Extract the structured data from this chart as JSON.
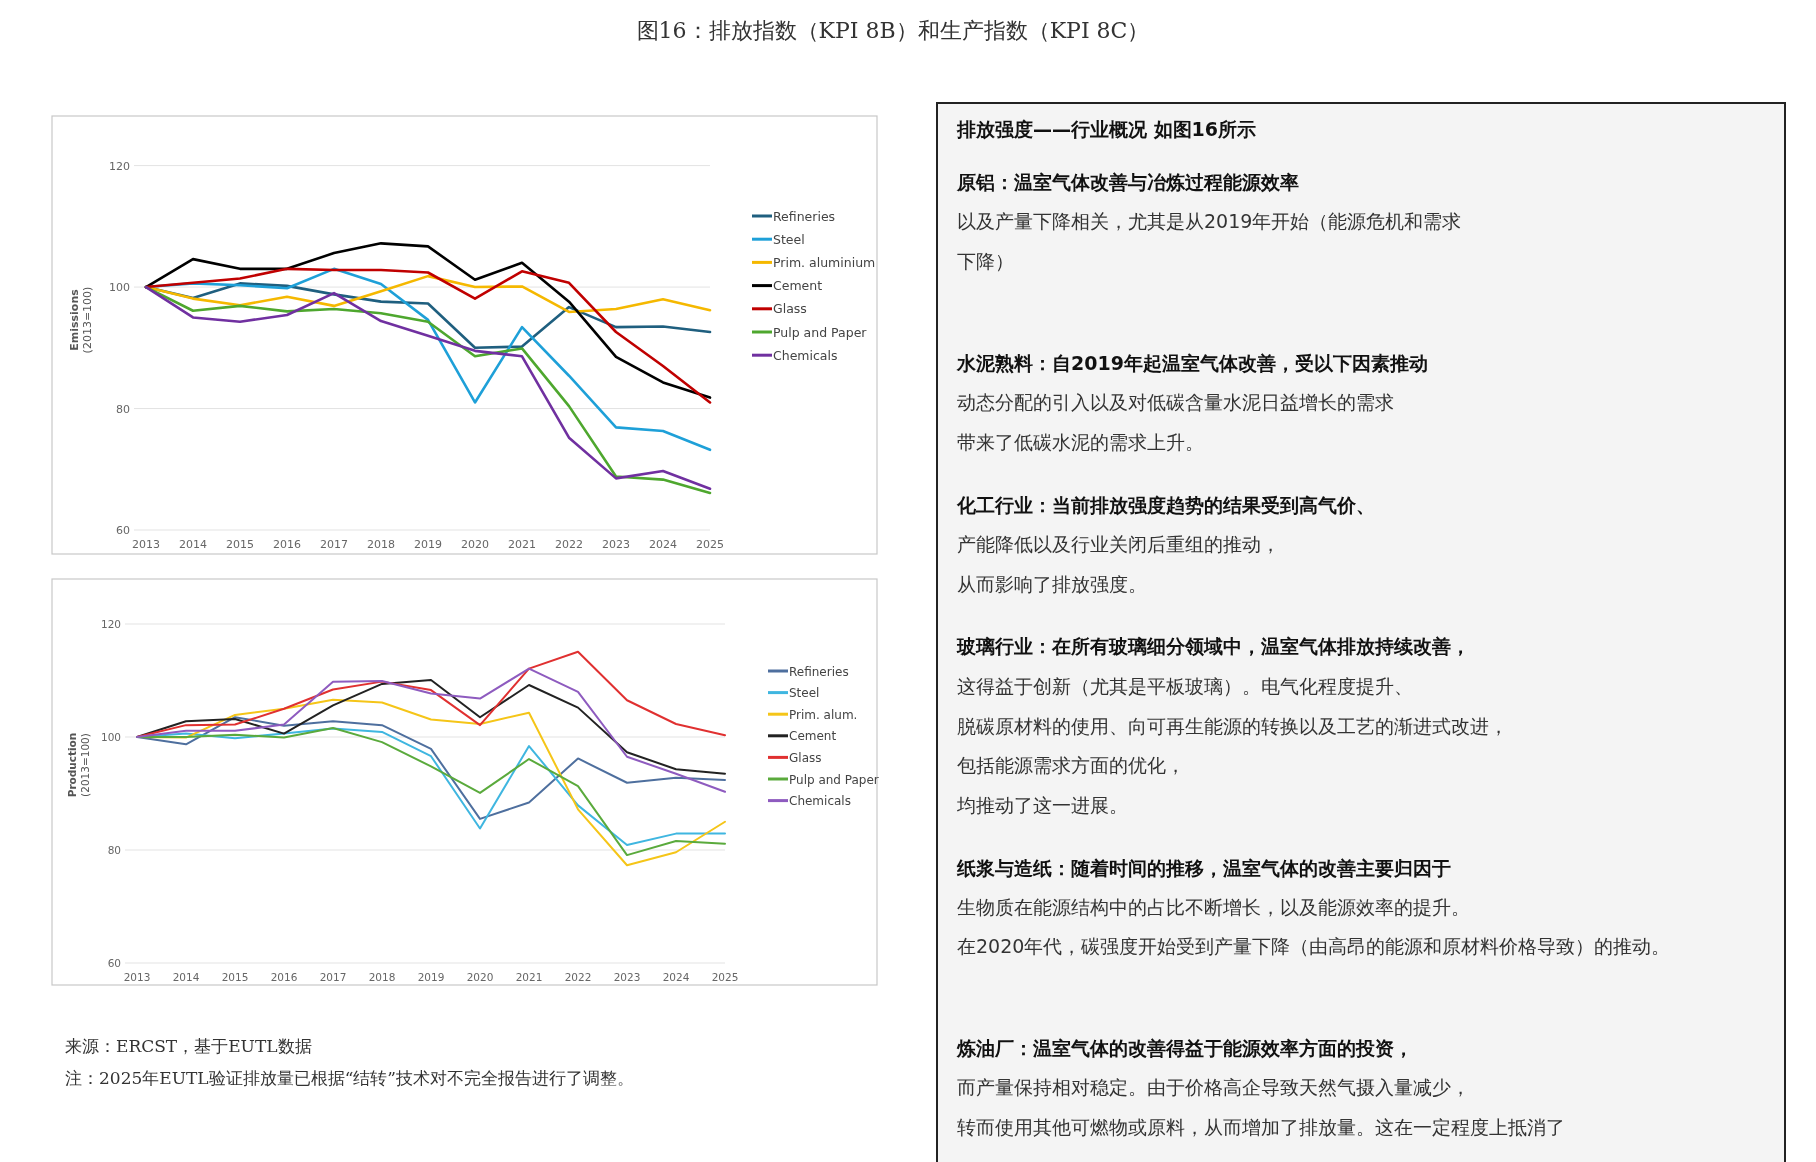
{
  "chart_data": [
    {
      "type": "line",
      "title": "图16：排放指数（KPI 8B）和生产指数（KPI 8C）",
      "ylabel": "Emissions\n(2013=100)",
      "categories": [
        "2013",
        "2014",
        "2015",
        "2016",
        "2017",
        "2018",
        "2019",
        "2020",
        "2021",
        "2022",
        "2023",
        "2024",
        "2025"
      ],
      "ylim": [
        60,
        120
      ],
      "yticks": [
        60,
        80,
        100,
        120
      ],
      "grid": "y",
      "legend": "right",
      "series": [
        {
          "name": "Refineries",
          "color": "#1f5f7f",
          "values": [
            100,
            98.2,
            100.6,
            100.2,
            98.8,
            97.6,
            97.3,
            90.0,
            90.2,
            96.7,
            93.4,
            93.5,
            92.6
          ]
        },
        {
          "name": "Steel",
          "color": "#1ea0d8",
          "values": [
            100,
            100.6,
            100.3,
            99.8,
            103.0,
            100.5,
            94.6,
            81.0,
            93.4,
            85.4,
            76.9,
            76.3,
            73.2
          ]
        },
        {
          "name": "Prim. aluminium",
          "color": "#f5b800",
          "values": [
            100,
            98.1,
            97.0,
            98.4,
            96.9,
            99.3,
            101.8,
            100.0,
            100.1,
            95.9,
            96.4,
            98.0,
            96.2
          ]
        },
        {
          "name": "Cement",
          "color": "#000000",
          "values": [
            100,
            104.6,
            103.0,
            103.0,
            105.6,
            107.2,
            106.7,
            101.2,
            104.0,
            97.6,
            88.5,
            84.3,
            81.8
          ]
        },
        {
          "name": "Glass",
          "color": "#c00000",
          "values": [
            100,
            100.7,
            101.4,
            103.0,
            102.8,
            102.8,
            102.4,
            98.1,
            102.6,
            100.7,
            92.6,
            87.0,
            81.0
          ]
        },
        {
          "name": "Pulp and Paper",
          "color": "#4ea72e",
          "values": [
            100,
            96.1,
            96.9,
            96.0,
            96.4,
            95.7,
            94.3,
            88.6,
            89.9,
            80.4,
            68.8,
            68.3,
            66.1
          ]
        },
        {
          "name": "Chemicals",
          "color": "#7030a0",
          "values": [
            100,
            95.0,
            94.3,
            95.4,
            99.0,
            94.4,
            92.0,
            89.5,
            88.6,
            75.2,
            68.5,
            69.7,
            66.8
          ]
        }
      ]
    },
    {
      "type": "line",
      "ylabel": "Production\n(2013=100)",
      "categories": [
        "2013",
        "2014",
        "2015",
        "2016",
        "2017",
        "2018",
        "2019",
        "2020",
        "2021",
        "2022",
        "2023",
        "2024",
        "2025"
      ],
      "ylim": [
        60,
        120
      ],
      "yticks": [
        60,
        80,
        100,
        120
      ],
      "grid": "y",
      "legend": "right",
      "annotations": [
        "来源：ERCST，基于EUTL数据",
        "注：2025年EUTL验证排放量已根据“结转”技术对不完全报告进行了调整。"
      ],
      "series": [
        {
          "name": "Refineries",
          "color": "#4e6f9e",
          "values": [
            100,
            98.7,
            103.5,
            102.0,
            102.8,
            102.1,
            97.9,
            85.5,
            88.4,
            96.2,
            91.9,
            92.8,
            92.4
          ]
        },
        {
          "name": "Steel",
          "color": "#3fb6e0",
          "values": [
            100,
            100.6,
            99.8,
            100.6,
            101.5,
            100.9,
            96.6,
            83.8,
            98.4,
            87.9,
            80.9,
            82.9,
            82.9
          ]
        },
        {
          "name": "Prim. alum.",
          "color": "#f5c518",
          "values": [
            100,
            99.9,
            103.9,
            105.0,
            106.6,
            106.1,
            103.1,
            102.3,
            104.3,
            87.2,
            77.3,
            79.6,
            85.0
          ]
        },
        {
          "name": "Cement",
          "color": "#222222",
          "values": [
            100,
            102.8,
            103.2,
            100.6,
            105.6,
            109.4,
            110.1,
            103.5,
            109.2,
            105.2,
            97.3,
            94.3,
            93.5
          ]
        },
        {
          "name": "Glass",
          "color": "#e03030",
          "values": [
            100,
            102.1,
            102.2,
            105.0,
            108.4,
            109.8,
            108.3,
            102.1,
            112.1,
            115.1,
            106.5,
            102.3,
            100.3
          ]
        },
        {
          "name": "Pulp and Paper",
          "color": "#5aaa3c",
          "values": [
            100,
            100.0,
            100.4,
            99.9,
            101.6,
            99.1,
            94.8,
            90.1,
            96.1,
            91.3,
            79.1,
            81.6,
            81.1
          ]
        },
        {
          "name": "Chemicals",
          "color": "#8e5bbf",
          "values": [
            100,
            101.1,
            101.1,
            102.2,
            109.8,
            109.9,
            107.7,
            106.8,
            112.1,
            108.0,
            96.5,
            93.5,
            90.3
          ]
        }
      ]
    },
    {
      "type": "other",
      "title": "排放强度——行业概况 如图16所示",
      "annotations": [
        "原铝：温室气体改善与冶炼过程能源效率",
        "以及产量下降相关，尤其是从2019年开始（能源危机和需求",
        "下降）",
        "水泥熟料：自2019年起温室气体改善，受以下因素推动",
        "动态分配的引入以及对低碳含量水泥日益增长的需求",
        "带来了低碳水泥的需求上升。",
        "化工行业：当前排放强度趋势的结果受到高气价、",
        "产能降低以及行业关闭后重组的推动，",
        "从而影响了排放强度。",
        "玻璃行业：在所有玻璃细分领域中，温室气体排放持续改善，",
        "这得益于创新（尤其是平板玻璃）。电气化程度提升、",
        "脱碳原材料的使用、向可再生能源的转换以及工艺的渐进式改进，",
        "包括能源需求方面的优化，",
        "均推动了这一进展。",
        "纸浆与造纸：随着时间的推移，温室气体的改善主要归因于",
        "生物质在能源结构中的占比不断增长，以及能源效率的提升。",
        "在2020年代，碳强度开始受到产量下降（由高昂的能源和原材料价格导致）的推动。",
        "炼油厂：温室气体的改善得益于能源效率方面的投资，",
        "而产量保持相对稳定。由于价格高企导致天然气摄入量减少，",
        "转而使用其他可燃物或原料，从而增加了排放量。这在一定程度上抵消了"
      ]
    }
  ]
}
